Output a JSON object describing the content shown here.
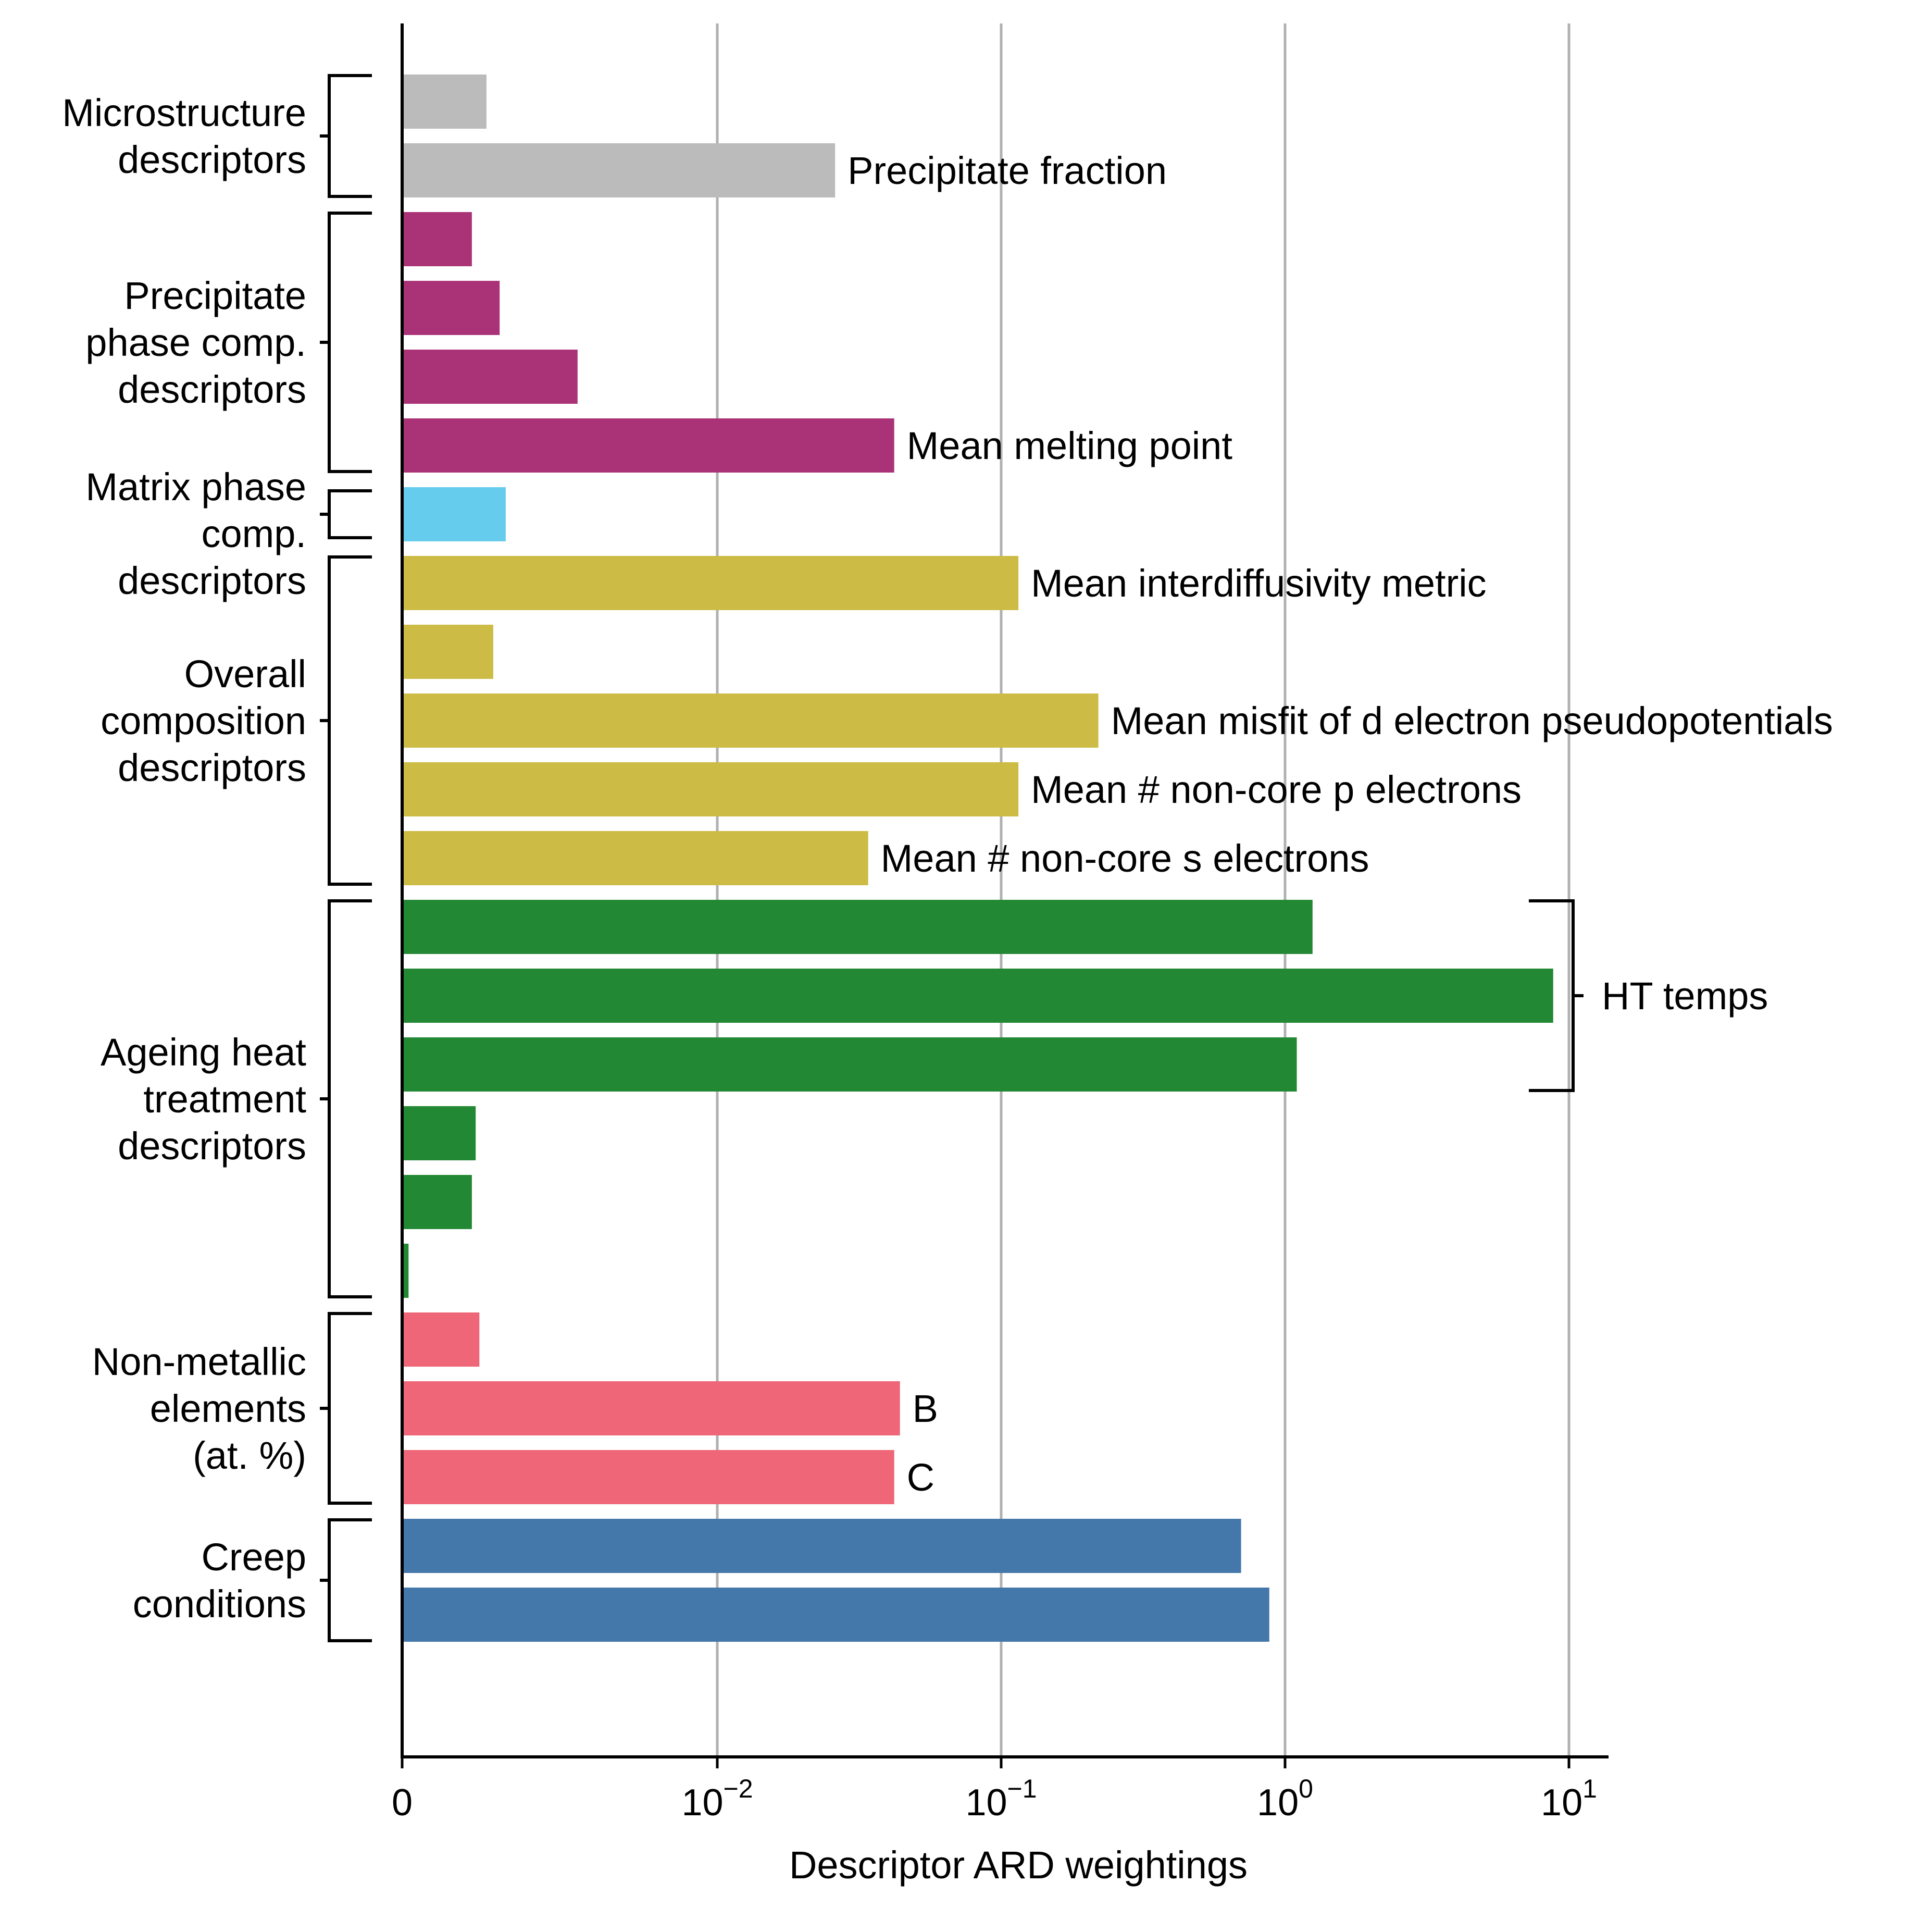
{
  "chart_data": {
    "type": "bar",
    "orientation": "horizontal",
    "xlabel": "Descriptor ARD weightings",
    "x_scale": "symlog",
    "xticks": [
      {
        "value": 0,
        "base": "0",
        "exp": ""
      },
      {
        "value": 0.01,
        "base": "10",
        "exp": "−2"
      },
      {
        "value": 0.1,
        "base": "10",
        "exp": "−1"
      },
      {
        "value": 1,
        "base": "10",
        "exp": "0"
      },
      {
        "value": 10,
        "base": "10",
        "exp": "1"
      }
    ],
    "grid": "vertical at major ticks",
    "colors": {
      "microstructure": "#bbbbbb",
      "precipitate": "#aa3377",
      "matrix": "#66ccee",
      "overall": "#ccbb44",
      "ageing": "#228833",
      "nonmetallic": "#ee6677",
      "creep": "#4477aa",
      "grid": "#b0b0b0"
    },
    "groups": [
      {
        "label": [
          "Microstructure",
          "descriptors"
        ],
        "color_key": "microstructure",
        "bars": [
          {
            "value": 0.0009,
            "label": ""
          },
          {
            "value": 0.026,
            "label": "Precipitate fraction"
          }
        ]
      },
      {
        "label": [
          "Precipitate",
          "phase comp.",
          "descriptors"
        ],
        "color_key": "precipitate",
        "bars": [
          {
            "value": 0.0007,
            "label": ""
          },
          {
            "value": 0.0011,
            "label": ""
          },
          {
            "value": 0.0028,
            "label": ""
          },
          {
            "value": 0.042,
            "label": "Mean melting point"
          }
        ]
      },
      {
        "label": [
          "Matrix phase",
          "comp.",
          "descriptors"
        ],
        "color_key": "matrix",
        "bars": [
          {
            "value": 0.0012,
            "label": ""
          }
        ]
      },
      {
        "label": [
          "Overall",
          "composition",
          "descriptors"
        ],
        "color_key": "overall",
        "bars": [
          {
            "value": 0.115,
            "label": "Mean interdiffusivity metric"
          },
          {
            "value": 0.001,
            "label": ""
          },
          {
            "value": 0.22,
            "label": "Mean misfit of d electron pseudopotentials"
          },
          {
            "value": 0.115,
            "label": "Mean # non-core p electrons"
          },
          {
            "value": 0.034,
            "label": "Mean # non-core s electrons"
          }
        ]
      },
      {
        "label": [
          "Ageing heat",
          "treatment",
          "descriptors"
        ],
        "color_key": "ageing",
        "bars": [
          {
            "value": 1.25,
            "label": ""
          },
          {
            "value": 8.8,
            "label": ""
          },
          {
            "value": 1.1,
            "label": ""
          },
          {
            "value": 0.00075,
            "label": ""
          },
          {
            "value": 0.0007,
            "label": ""
          },
          {
            "value": 5e-05,
            "label": ""
          }
        ]
      },
      {
        "label": [
          "Non-metallic",
          "elements",
          "(at. %)"
        ],
        "color_key": "nonmetallic",
        "bars": [
          {
            "value": 0.0008,
            "label": ""
          },
          {
            "value": 0.044,
            "label": "B"
          },
          {
            "value": 0.042,
            "label": "C"
          }
        ]
      },
      {
        "label": [
          "Creep",
          "conditions"
        ],
        "color_key": "creep",
        "bars": [
          {
            "value": 0.7,
            "label": ""
          },
          {
            "value": 0.88,
            "label": ""
          }
        ]
      }
    ],
    "annotations": [
      {
        "text": "HT temps",
        "group": "Ageing heat treatment descriptors",
        "bars": [
          0,
          1,
          2
        ]
      }
    ]
  }
}
